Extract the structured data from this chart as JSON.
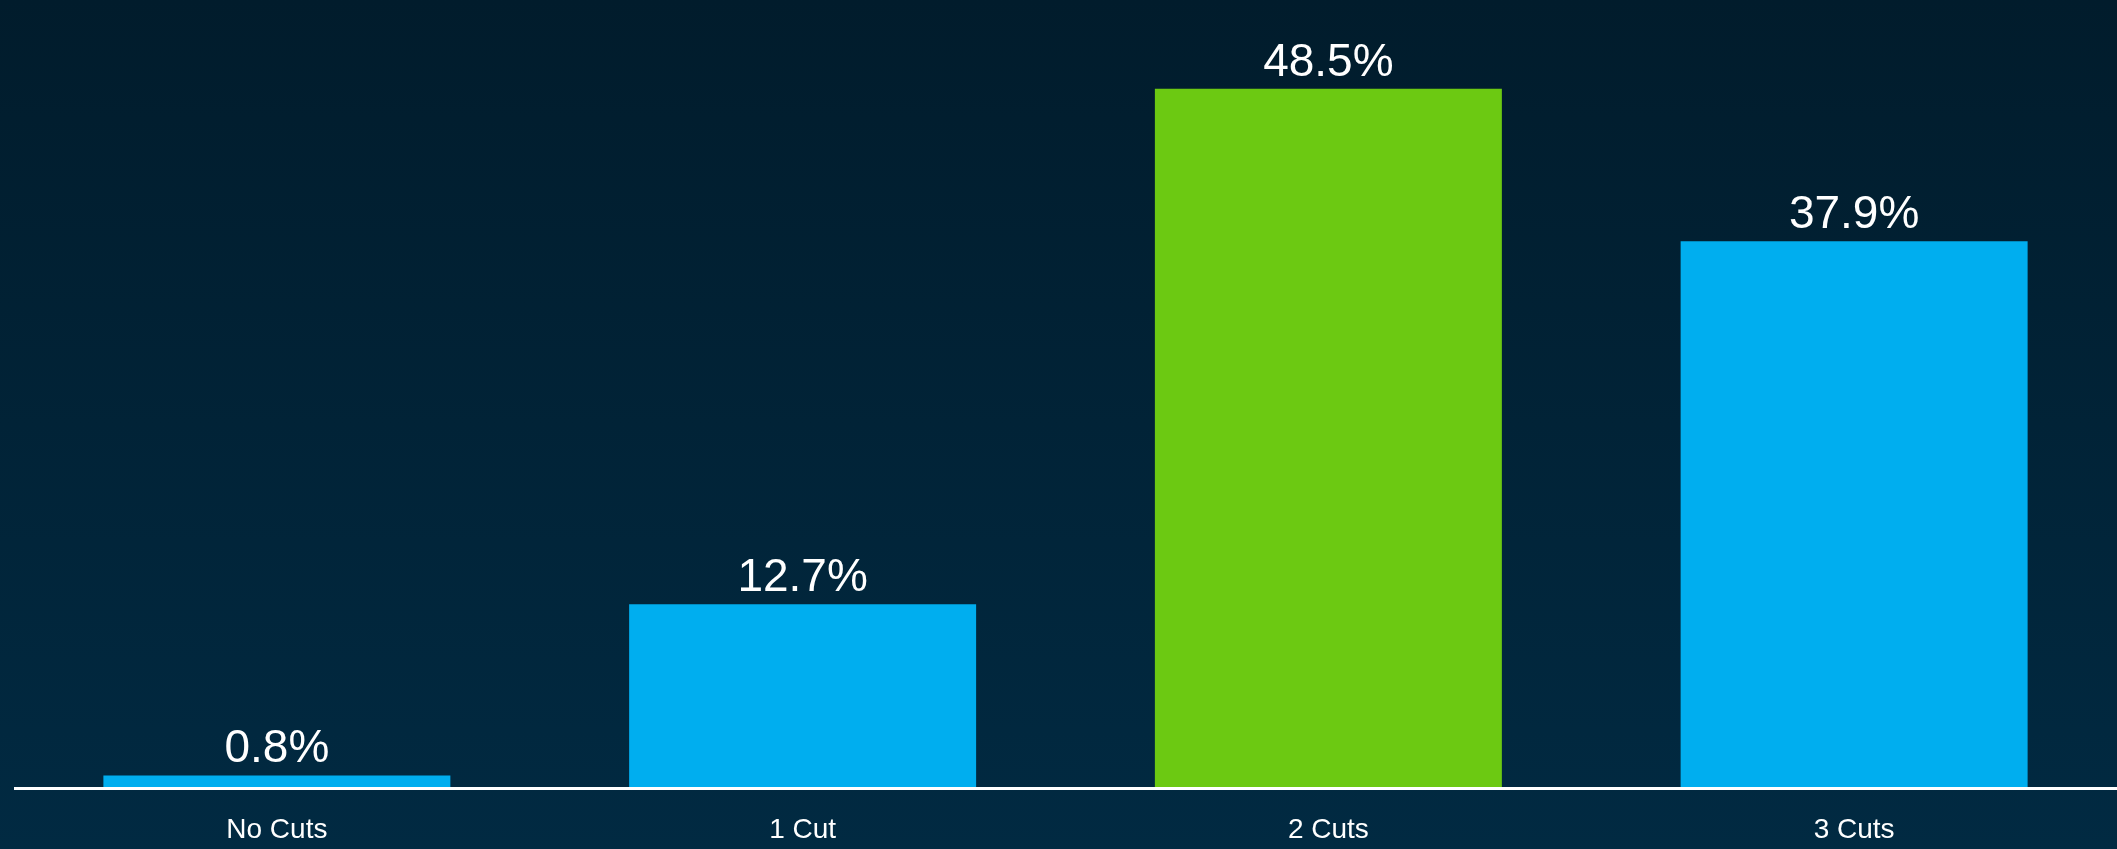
{
  "chart_data": {
    "type": "bar",
    "categories": [
      "No Cuts",
      "1 Cut",
      "2 Cuts",
      "3 Cuts"
    ],
    "values": [
      0.8,
      12.7,
      48.5,
      37.9
    ],
    "colors": [
      "#00aeef",
      "#00aeef",
      "#6cc912",
      "#00aeef"
    ],
    "value_labels": [
      "0.8%",
      "12.7%",
      "48.5%",
      "37.9%"
    ],
    "tick_labels": "x"
  }
}
